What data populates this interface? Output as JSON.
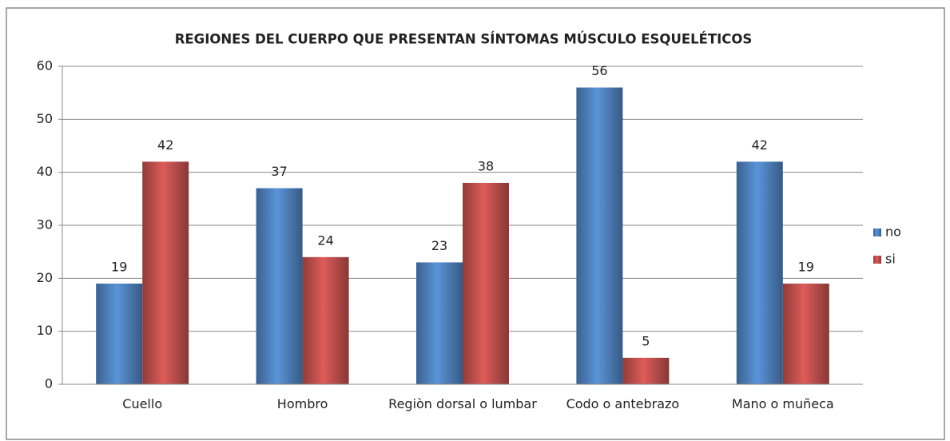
{
  "chart_data": {
    "type": "bar",
    "title": "REGIONES DEL CUERPO QUE PRESENTAN SÍNTOMAS MÚSCULO ESQUELÉTICOS",
    "categories": [
      "Cuello",
      "Hombro",
      "Regiòn dorsal o lumbar",
      "Codo o antebrazo",
      "Mano o muñeca"
    ],
    "series": [
      {
        "name": "no",
        "color": "#4f81bd",
        "values": [
          19,
          37,
          23,
          56,
          42
        ]
      },
      {
        "name": "si",
        "color": "#c0504d",
        "values": [
          42,
          24,
          38,
          5,
          19
        ]
      }
    ],
    "ylim": [
      0,
      60
    ],
    "yticks": [
      0,
      10,
      20,
      30,
      40,
      50,
      60
    ],
    "grid": true,
    "legend": "right"
  }
}
